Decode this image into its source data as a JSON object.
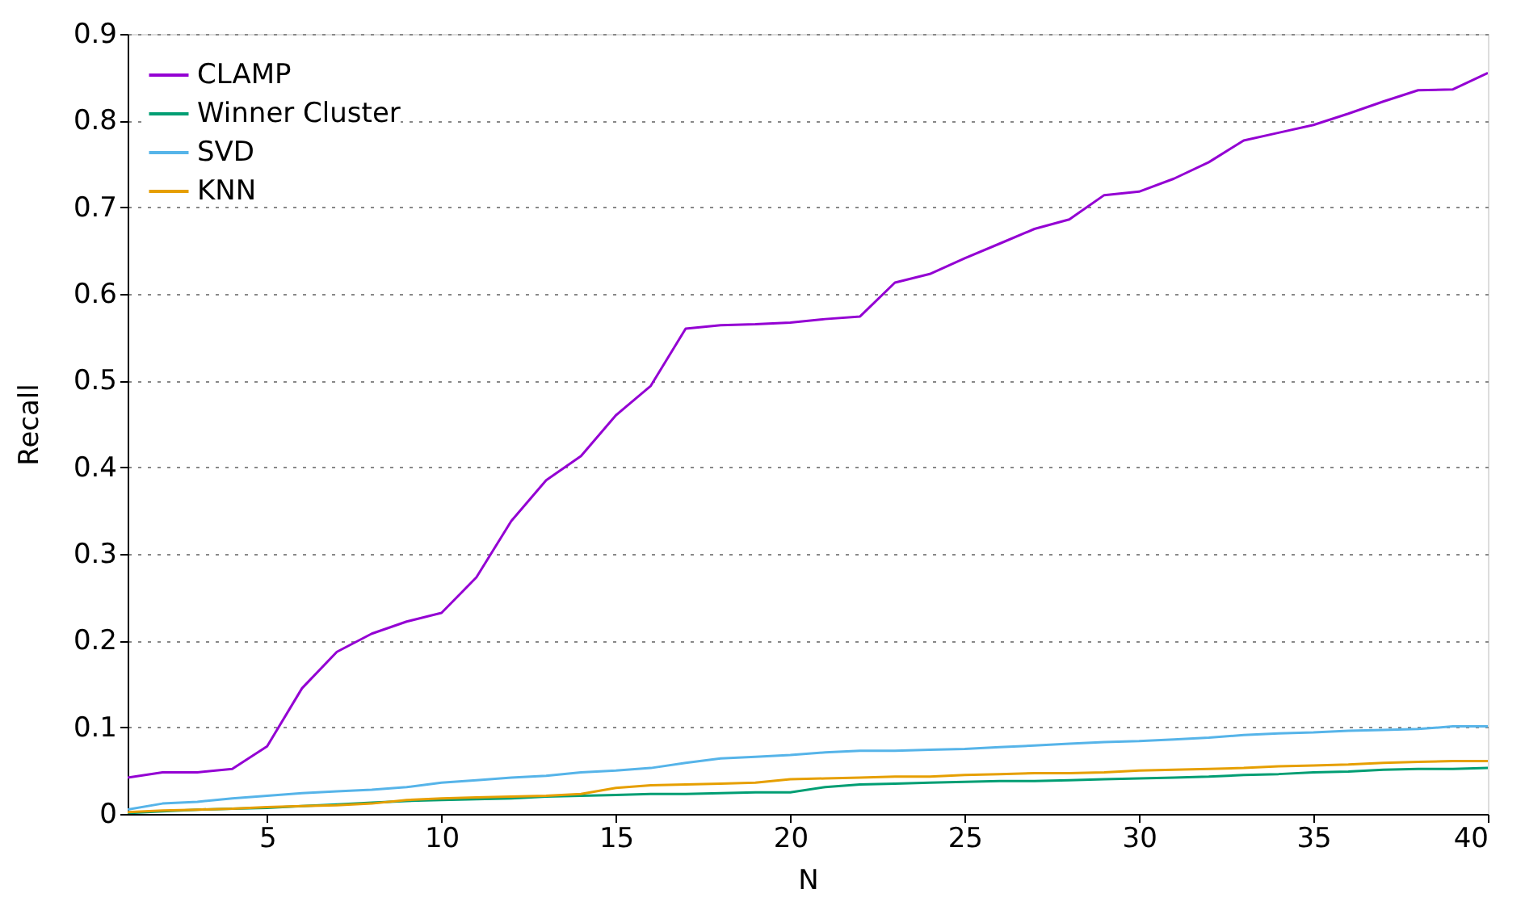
{
  "chart_data": {
    "type": "line",
    "xlabel": "N",
    "ylabel": "Recall",
    "x": [
      1,
      2,
      3,
      4,
      5,
      6,
      7,
      8,
      9,
      10,
      11,
      12,
      13,
      14,
      15,
      16,
      17,
      18,
      19,
      20,
      21,
      22,
      23,
      24,
      25,
      26,
      27,
      28,
      29,
      30,
      31,
      32,
      33,
      34,
      35,
      36,
      37,
      38,
      39,
      40
    ],
    "series": [
      {
        "name": "CLAMP",
        "color": "#9400d3",
        "values": [
          0.042,
          0.048,
          0.048,
          0.052,
          0.078,
          0.145,
          0.187,
          0.208,
          0.222,
          0.232,
          0.273,
          0.338,
          0.385,
          0.413,
          0.46,
          0.494,
          0.56,
          0.564,
          0.565,
          0.567,
          0.571,
          0.574,
          0.613,
          0.623,
          0.641,
          0.658,
          0.675,
          0.686,
          0.714,
          0.718,
          0.733,
          0.752,
          0.777,
          0.786,
          0.795,
          0.808,
          0.822,
          0.835,
          0.836,
          0.855
        ]
      },
      {
        "name": "Winner Cluster",
        "color": "#009e73",
        "values": [
          0.001,
          0.003,
          0.005,
          0.006,
          0.007,
          0.009,
          0.011,
          0.013,
          0.015,
          0.016,
          0.017,
          0.018,
          0.02,
          0.021,
          0.022,
          0.023,
          0.023,
          0.024,
          0.025,
          0.025,
          0.031,
          0.034,
          0.035,
          0.036,
          0.037,
          0.038,
          0.038,
          0.039,
          0.04,
          0.041,
          0.042,
          0.043,
          0.045,
          0.046,
          0.048,
          0.049,
          0.051,
          0.052,
          0.052,
          0.053
        ]
      },
      {
        "name": "SVD",
        "color": "#56b4e9",
        "values": [
          0.005,
          0.012,
          0.014,
          0.018,
          0.021,
          0.024,
          0.026,
          0.028,
          0.031,
          0.036,
          0.039,
          0.042,
          0.044,
          0.048,
          0.05,
          0.053,
          0.059,
          0.064,
          0.066,
          0.068,
          0.071,
          0.073,
          0.073,
          0.074,
          0.075,
          0.077,
          0.079,
          0.081,
          0.083,
          0.084,
          0.086,
          0.088,
          0.091,
          0.093,
          0.094,
          0.096,
          0.097,
          0.098,
          0.101,
          0.101
        ]
      },
      {
        "name": "KNN",
        "color": "#e69f00",
        "values": [
          0.002,
          0.004,
          0.005,
          0.006,
          0.008,
          0.009,
          0.01,
          0.012,
          0.016,
          0.018,
          0.019,
          0.02,
          0.021,
          0.023,
          0.03,
          0.033,
          0.034,
          0.035,
          0.036,
          0.04,
          0.041,
          0.042,
          0.043,
          0.043,
          0.045,
          0.046,
          0.047,
          0.047,
          0.048,
          0.05,
          0.051,
          0.052,
          0.053,
          0.055,
          0.056,
          0.057,
          0.059,
          0.06,
          0.061,
          0.061
        ]
      }
    ],
    "xlim": [
      1,
      40
    ],
    "xticks": [
      5,
      10,
      15,
      20,
      25,
      30,
      35,
      40
    ],
    "ylim": [
      0,
      0.9
    ],
    "yticks": [
      0,
      0.1,
      0.2,
      0.3,
      0.4,
      0.5,
      0.6,
      0.7,
      0.8,
      0.9
    ],
    "grid": "y",
    "legend": "top left",
    "marker": "none",
    "line_style": "solid"
  }
}
